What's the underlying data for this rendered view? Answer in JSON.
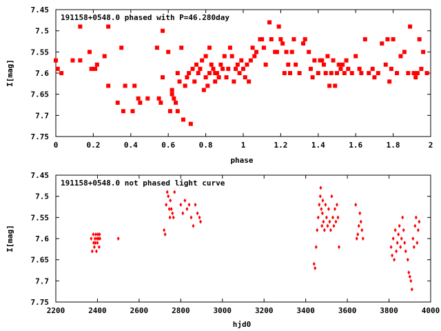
{
  "charts": [
    {
      "type": "scatter",
      "title": "191158+0548.0 phased with P=46.280day",
      "xlabel": "phase",
      "ylabel": "I[mag]",
      "xlim": [
        0,
        2
      ],
      "ylim": [
        7.45,
        7.75
      ],
      "y_inverted": true,
      "xticks": [
        "0",
        "0.2",
        "0.4",
        "0.6",
        "0.8",
        "1",
        "1.2",
        "1.4",
        "1.6",
        "1.8",
        "2"
      ],
      "yticks": [
        "7.45",
        "7.5",
        "7.55",
        "7.6",
        "7.65",
        "7.7",
        "7.75"
      ],
      "marker_color": "#ff0000",
      "points_x": [
        0.0,
        0.01,
        0.03,
        0.09,
        0.13,
        0.13,
        0.18,
        0.19,
        0.21,
        0.22,
        0.26,
        0.28,
        0.28,
        0.33,
        0.35,
        0.36,
        0.37,
        0.41,
        0.42,
        0.44,
        0.45,
        0.49,
        0.54,
        0.55,
        0.56,
        0.57,
        0.57,
        0.6,
        0.61,
        0.62,
        0.62,
        0.63,
        0.64,
        0.65,
        0.65,
        0.66,
        0.67,
        0.68,
        0.69,
        0.7,
        0.71,
        0.72,
        0.73,
        0.74,
        0.75,
        0.76,
        0.77,
        0.78,
        0.79,
        0.8,
        0.8,
        0.81,
        0.82,
        0.82,
        0.83,
        0.84,
        0.85,
        0.85,
        0.86,
        0.87,
        0.88,
        0.89,
        0.9,
        0.91,
        0.92,
        0.93,
        0.94,
        0.95,
        0.96,
        0.97,
        0.98,
        0.99,
        1.0,
        1.01,
        1.02,
        1.03,
        1.04,
        1.05,
        1.06,
        1.07,
        1.09,
        1.1,
        1.11,
        1.12,
        1.14,
        1.15,
        1.17,
        1.18,
        1.19,
        1.2,
        1.21,
        1.22,
        1.23,
        1.24,
        1.25,
        1.26,
        1.27,
        1.28,
        1.3,
        1.32,
        1.33,
        1.35,
        1.36,
        1.37,
        1.38,
        1.4,
        1.41,
        1.42,
        1.43,
        1.44,
        1.45,
        1.46,
        1.47,
        1.48,
        1.49,
        1.5,
        1.51,
        1.52,
        1.53,
        1.54,
        1.55,
        1.56,
        1.58,
        1.6,
        1.62,
        1.63,
        1.65,
        1.67,
        1.69,
        1.7,
        1.72,
        1.74,
        1.76,
        1.77,
        1.78,
        1.79,
        1.8,
        1.82,
        1.84,
        1.86,
        1.88,
        1.89,
        1.91,
        1.92,
        1.93,
        1.94,
        1.95,
        1.96,
        1.98
      ],
      "points_y": [
        7.57,
        7.59,
        7.6,
        7.57,
        7.49,
        7.57,
        7.55,
        7.59,
        7.59,
        7.58,
        7.56,
        7.49,
        7.63,
        7.67,
        7.54,
        7.69,
        7.63,
        7.69,
        7.63,
        7.66,
        7.67,
        7.66,
        7.54,
        7.66,
        7.67,
        7.5,
        7.61,
        7.55,
        7.69,
        7.64,
        7.65,
        7.66,
        7.67,
        7.69,
        7.6,
        7.62,
        7.54,
        7.71,
        7.63,
        7.61,
        7.6,
        7.72,
        7.59,
        7.62,
        7.58,
        7.6,
        7.59,
        7.57,
        7.64,
        7.56,
        7.61,
        7.63,
        7.54,
        7.6,
        7.58,
        7.59,
        7.6,
        7.62,
        7.6,
        7.61,
        7.58,
        7.59,
        7.56,
        7.61,
        7.59,
        7.54,
        7.56,
        7.62,
        7.59,
        7.58,
        7.6,
        7.57,
        7.59,
        7.61,
        7.58,
        7.62,
        7.57,
        7.54,
        7.56,
        7.55,
        7.52,
        7.52,
        7.54,
        7.58,
        7.48,
        7.52,
        7.55,
        7.55,
        7.49,
        7.52,
        7.53,
        7.6,
        7.55,
        7.58,
        7.6,
        7.55,
        7.52,
        7.58,
        7.6,
        7.53,
        7.52,
        7.55,
        7.59,
        7.61,
        7.57,
        7.6,
        7.57,
        7.57,
        7.58,
        7.6,
        7.56,
        7.63,
        7.6,
        7.57,
        7.63,
        7.6,
        7.58,
        7.59,
        7.58,
        7.6,
        7.57,
        7.59,
        7.6,
        7.56,
        7.59,
        7.6,
        7.52,
        7.6,
        7.59,
        7.61,
        7.6,
        7.53,
        7.58,
        7.52,
        7.62,
        7.59,
        7.52,
        7.6,
        7.56,
        7.55,
        7.6,
        7.49,
        7.6,
        7.61,
        7.6,
        7.52,
        7.59,
        7.55,
        7.6,
        7.5,
        7.59,
        7.59
      ]
    },
    {
      "type": "scatter",
      "title": "191158+0548.0 not phased light curve",
      "xlabel": "hjd0",
      "ylabel": "I[mag]",
      "xlim": [
        2200,
        4000
      ],
      "ylim": [
        7.45,
        7.75
      ],
      "y_inverted": true,
      "xticks": [
        "2200",
        "2400",
        "2600",
        "2800",
        "3000",
        "3200",
        "3400",
        "3600",
        "3800",
        "4000"
      ],
      "yticks": [
        "7.45",
        "7.5",
        "7.55",
        "7.6",
        "7.65",
        "7.7",
        "7.75"
      ],
      "marker_color": "#ff0000",
      "points_x": [
        2370,
        2375,
        2380,
        2382,
        2385,
        2388,
        2390,
        2392,
        2395,
        2398,
        2400,
        2402,
        2405,
        2408,
        2410,
        2412,
        2500,
        2720,
        2725,
        2730,
        2735,
        2740,
        2745,
        2748,
        2750,
        2755,
        2760,
        2765,
        2770,
        2800,
        2810,
        2820,
        2830,
        2840,
        2850,
        2860,
        2870,
        2880,
        2890,
        2895,
        3440,
        3445,
        3450,
        3455,
        3460,
        3465,
        3470,
        3472,
        3475,
        3478,
        3480,
        3482,
        3485,
        3490,
        3495,
        3500,
        3505,
        3510,
        3515,
        3520,
        3525,
        3530,
        3535,
        3540,
        3545,
        3550,
        3555,
        3560,
        3640,
        3645,
        3650,
        3655,
        3660,
        3665,
        3670,
        3675,
        3810,
        3815,
        3820,
        3825,
        3830,
        3835,
        3840,
        3845,
        3850,
        3855,
        3860,
        3865,
        3870,
        3875,
        3880,
        3890,
        3895,
        3900,
        3905,
        3910,
        3915,
        3920,
        3925,
        3930,
        3935,
        3940,
        3945
      ],
      "points_y": [
        7.6,
        7.63,
        7.59,
        7.61,
        7.62,
        7.6,
        7.61,
        7.59,
        7.63,
        7.6,
        7.61,
        7.59,
        7.6,
        7.62,
        7.59,
        7.6,
        7.6,
        7.58,
        7.59,
        7.52,
        7.49,
        7.5,
        7.53,
        7.55,
        7.51,
        7.53,
        7.54,
        7.55,
        7.49,
        7.52,
        7.54,
        7.51,
        7.53,
        7.52,
        7.55,
        7.57,
        7.52,
        7.54,
        7.55,
        7.56,
        7.66,
        7.67,
        7.62,
        7.58,
        7.55,
        7.52,
        7.5,
        7.48,
        7.53,
        7.57,
        7.54,
        7.51,
        7.56,
        7.58,
        7.52,
        7.55,
        7.57,
        7.53,
        7.56,
        7.58,
        7.5,
        7.55,
        7.57,
        7.53,
        7.56,
        7.52,
        7.55,
        7.62,
        7.52,
        7.6,
        7.59,
        7.57,
        7.54,
        7.56,
        7.58,
        7.6,
        7.62,
        7.64,
        7.6,
        7.65,
        7.58,
        7.63,
        7.61,
        7.59,
        7.57,
        7.62,
        7.6,
        7.55,
        7.58,
        7.61,
        7.63,
        7.65,
        7.68,
        7.69,
        7.7,
        7.72,
        7.6,
        7.62,
        7.57,
        7.55,
        7.61,
        7.58,
        7.56
      ]
    }
  ]
}
